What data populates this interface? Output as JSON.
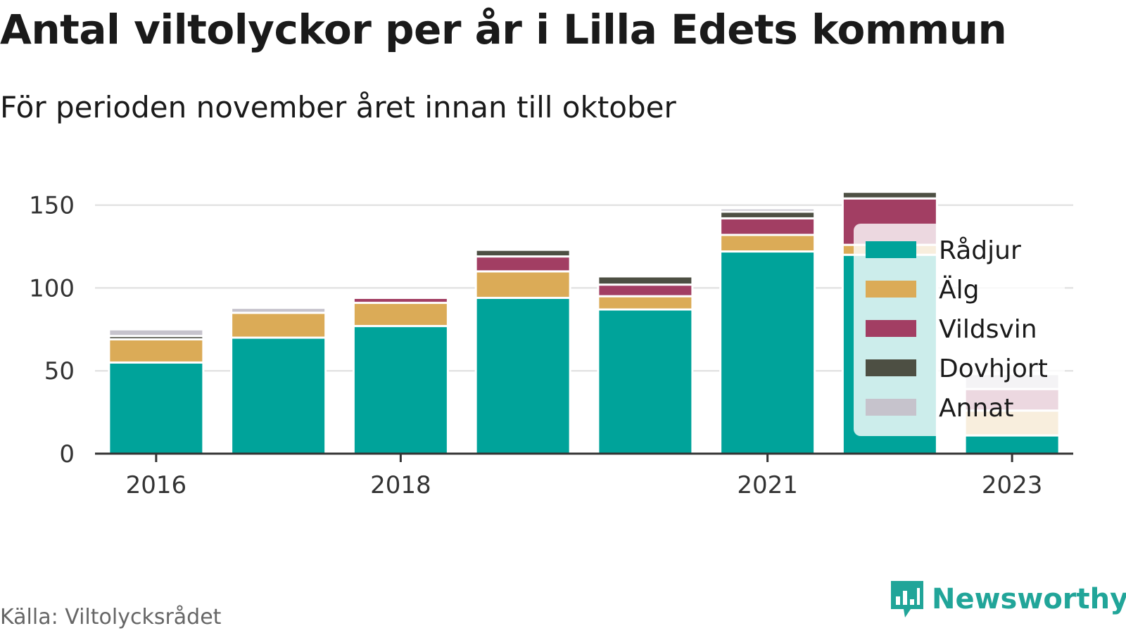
{
  "title": "Antal viltolyckor per år i Lilla Edets kommun",
  "subtitle": "För perioden november året innan till oktober",
  "source": "Källa: Viltolycksrådet",
  "brand": {
    "name": "Newsworthy",
    "icon": "bar-chart-speech-bubble-icon",
    "color": "#21a599"
  },
  "chart_data": {
    "type": "bar",
    "stacked": true,
    "categories": [
      "2016",
      "2017",
      "2018",
      "2019",
      "2020",
      "2021",
      "2022",
      "2023"
    ],
    "x_tick_labels": [
      "2016",
      "",
      "2018",
      "",
      "",
      "2021",
      "",
      "2023"
    ],
    "y_ticks": [
      0,
      50,
      100,
      150
    ],
    "ylim": [
      0,
      160
    ],
    "grid": true,
    "legend_position": "right",
    "series": [
      {
        "name": "Rådjur",
        "color": "#00a39a",
        "values": [
          55,
          70,
          77,
          94,
          87,
          122,
          120,
          11
        ]
      },
      {
        "name": "Älg",
        "color": "#dbab57",
        "values": [
          14,
          15,
          14,
          16,
          8,
          10,
          6,
          15
        ]
      },
      {
        "name": "Vildsvin",
        "color": "#a23e63",
        "values": [
          0,
          0,
          3,
          9,
          7,
          10,
          28,
          13
        ]
      },
      {
        "name": "Dovhjort",
        "color": "#4d4f43",
        "values": [
          2,
          0,
          0,
          4,
          5,
          4,
          4,
          0
        ]
      },
      {
        "name": "Annat",
        "color": "#c6c3cc",
        "values": [
          4,
          3,
          0,
          0,
          1,
          2,
          0,
          9
        ]
      }
    ]
  }
}
